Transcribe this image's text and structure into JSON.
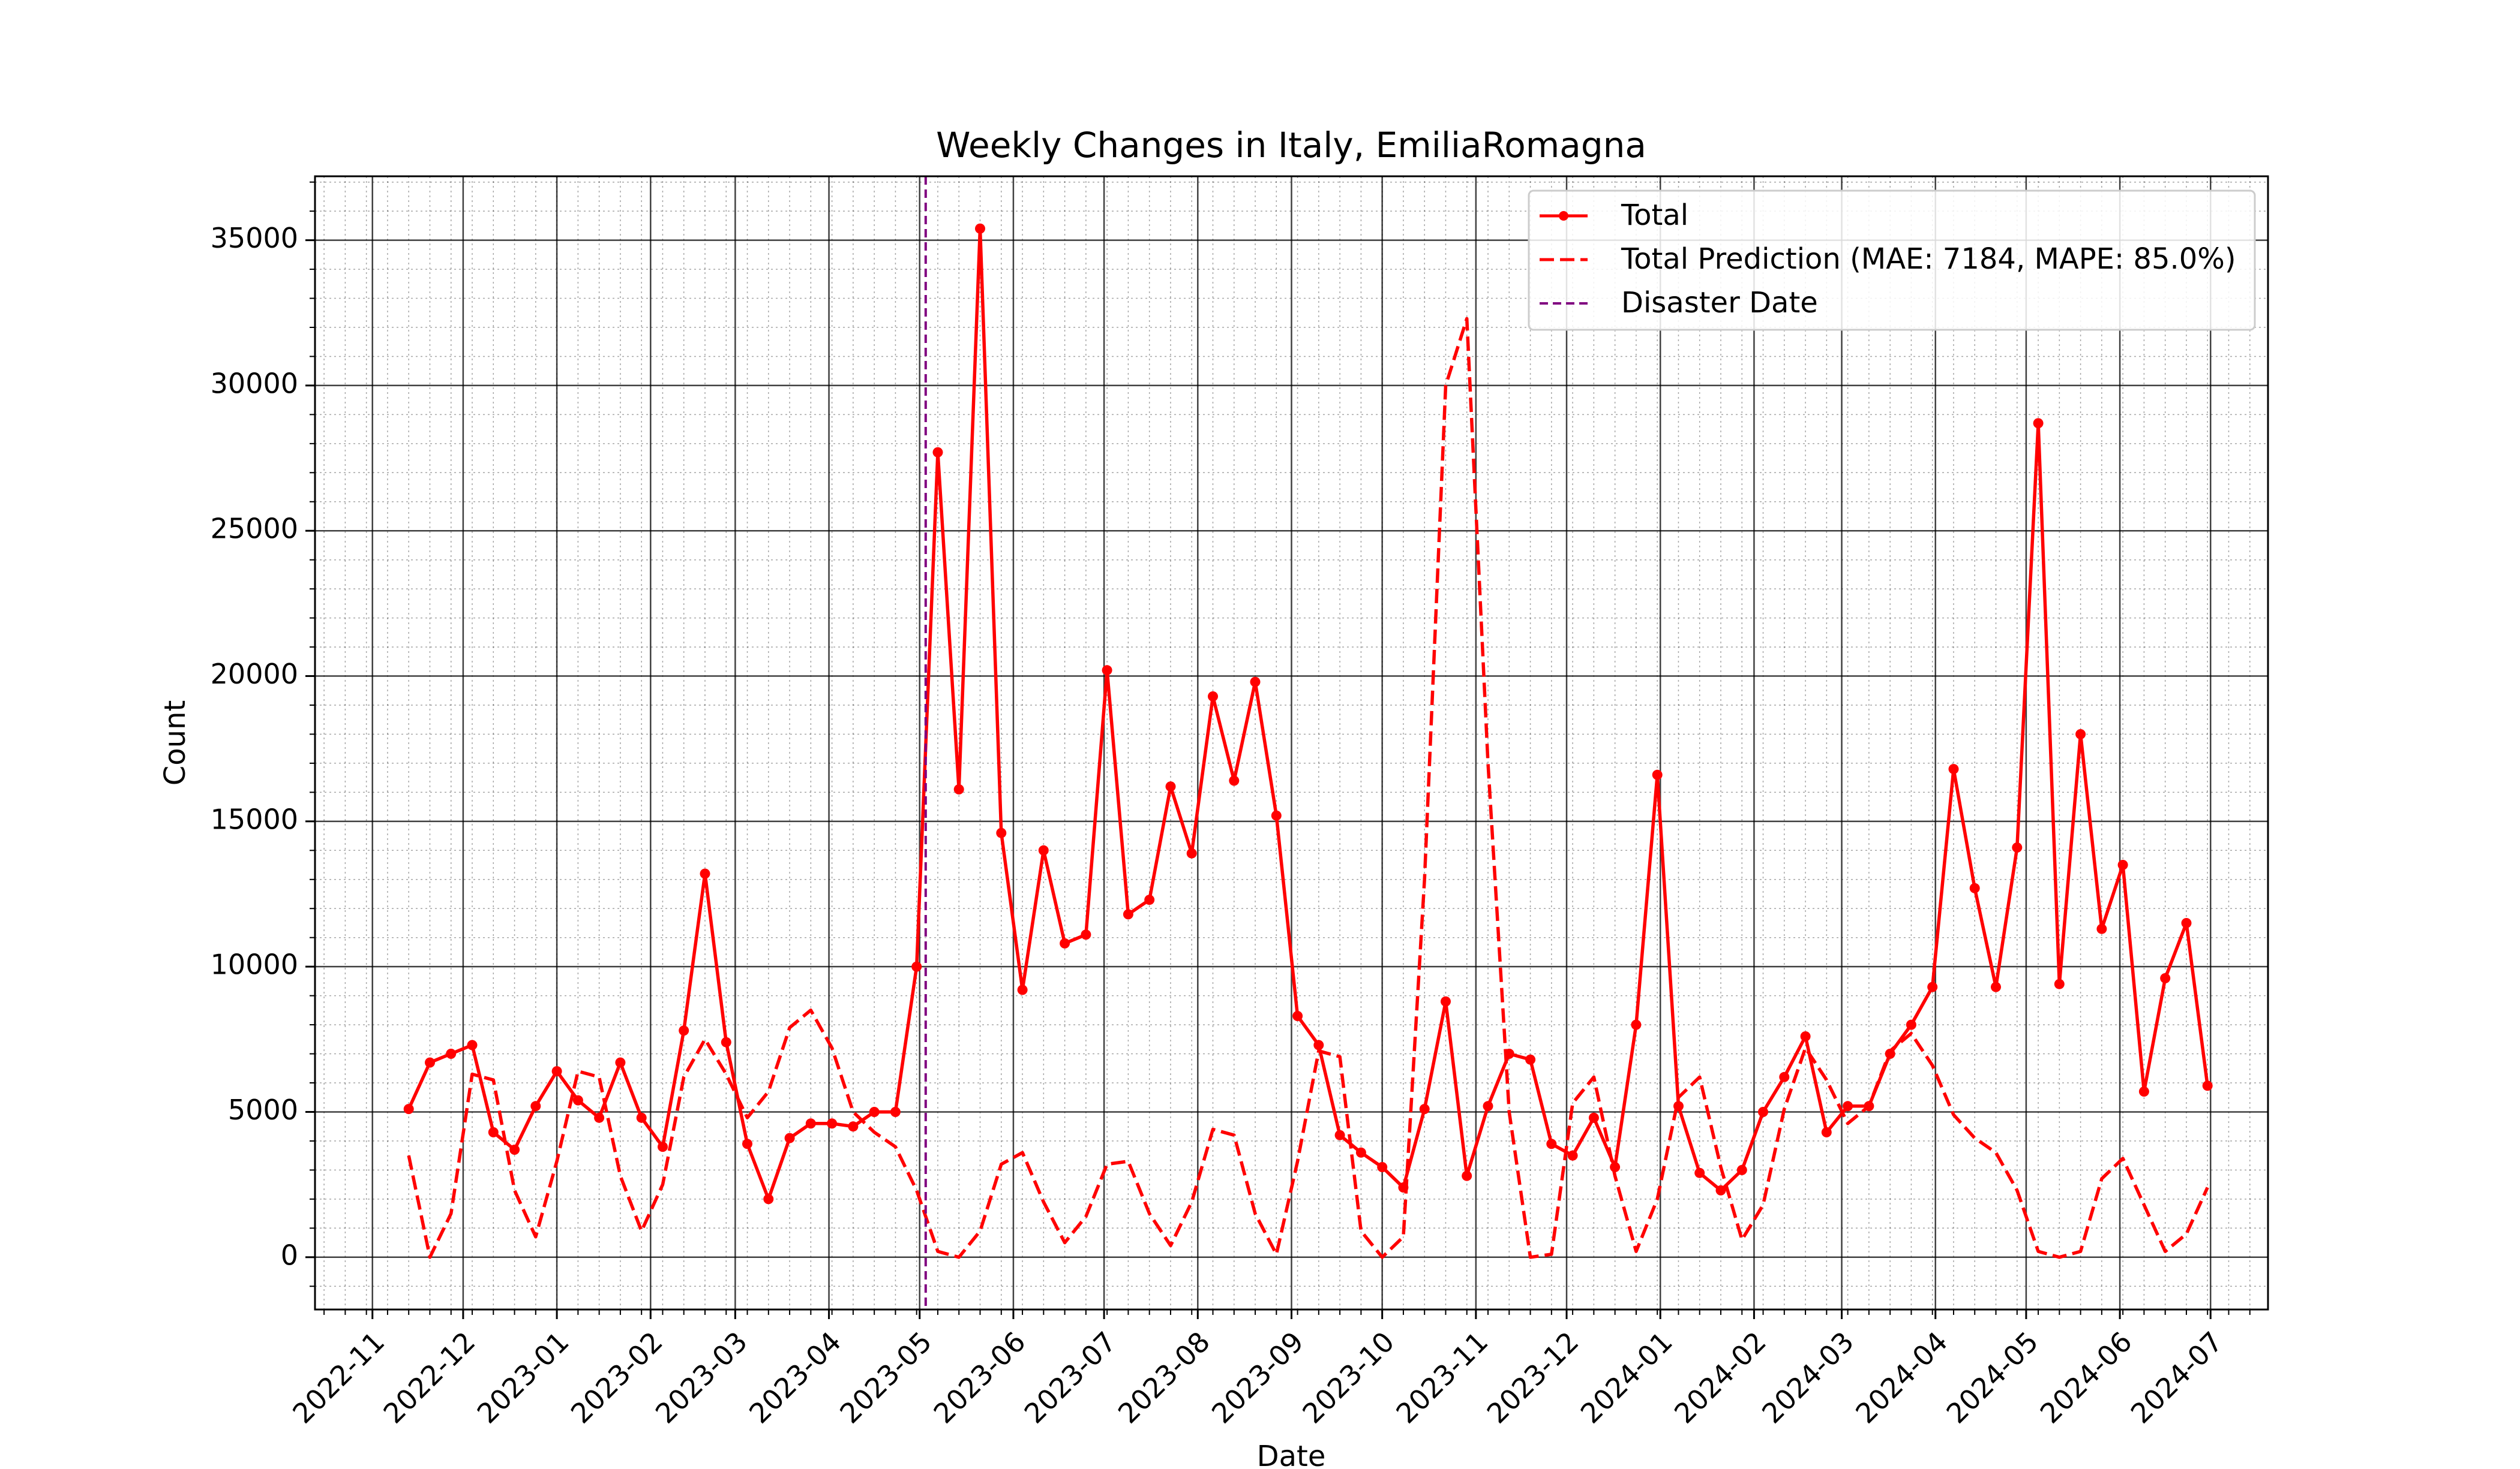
{
  "chart_data": {
    "type": "line",
    "title": "Weekly Changes in Italy, EmiliaRomagna",
    "xlabel": "Date",
    "ylabel": "Count",
    "ylim": [
      -1800,
      37200
    ],
    "xlim": [
      "2022-10-13",
      "2024-07-20"
    ],
    "y_ticks": [
      0,
      5000,
      10000,
      15000,
      20000,
      25000,
      30000,
      35000
    ],
    "x_ticks": [
      "2022-11",
      "2022-12",
      "2023-01",
      "2023-02",
      "2023-03",
      "2023-04",
      "2023-05",
      "2023-06",
      "2023-07",
      "2023-08",
      "2023-09",
      "2023-10",
      "2023-11",
      "2023-12",
      "2024-01",
      "2024-02",
      "2024-03",
      "2024-04",
      "2024-05",
      "2024-06",
      "2024-07"
    ],
    "grid": true,
    "minor_grid": true,
    "legend_position": "top-right",
    "disaster_date": "2023-05-03",
    "colors": {
      "total": "#ff0000",
      "prediction": "#ff0000",
      "disaster": "#800080",
      "grid": "#000000"
    },
    "series": [
      {
        "name": "Total",
        "style": "solid-markers",
        "x": [
          "2022-11-13",
          "2022-11-20",
          "2022-11-27",
          "2022-12-04",
          "2022-12-11",
          "2022-12-18",
          "2022-12-25",
          "2023-01-01",
          "2023-01-08",
          "2023-01-15",
          "2023-01-22",
          "2023-01-29",
          "2023-02-05",
          "2023-02-12",
          "2023-02-19",
          "2023-02-26",
          "2023-03-05",
          "2023-03-12",
          "2023-03-19",
          "2023-03-26",
          "2023-04-02",
          "2023-04-09",
          "2023-04-16",
          "2023-04-23",
          "2023-04-30",
          "2023-05-07",
          "2023-05-14",
          "2023-05-21",
          "2023-05-28",
          "2023-06-04",
          "2023-06-11",
          "2023-06-18",
          "2023-06-25",
          "2023-07-02",
          "2023-07-09",
          "2023-07-16",
          "2023-07-23",
          "2023-07-30",
          "2023-08-06",
          "2023-08-13",
          "2023-08-20",
          "2023-08-27",
          "2023-09-03",
          "2023-09-10",
          "2023-09-17",
          "2023-09-24",
          "2023-10-01",
          "2023-10-08",
          "2023-10-15",
          "2023-10-22",
          "2023-10-29",
          "2023-11-05",
          "2023-11-12",
          "2023-11-19",
          "2023-11-26",
          "2023-12-03",
          "2023-12-10",
          "2023-12-17",
          "2023-12-24",
          "2023-12-31",
          "2024-01-07",
          "2024-01-14",
          "2024-01-21",
          "2024-01-28",
          "2024-02-04",
          "2024-02-11",
          "2024-02-18",
          "2024-02-25",
          "2024-03-03",
          "2024-03-10",
          "2024-03-17",
          "2024-03-24",
          "2024-03-31",
          "2024-04-07",
          "2024-04-14",
          "2024-04-21",
          "2024-04-28",
          "2024-05-05",
          "2024-05-12",
          "2024-05-19",
          "2024-05-26",
          "2024-06-02",
          "2024-06-09",
          "2024-06-16",
          "2024-06-23",
          "2024-06-30"
        ],
        "values": [
          5100,
          6700,
          7000,
          7300,
          4300,
          3700,
          5200,
          6400,
          5400,
          4800,
          6700,
          4800,
          3800,
          7800,
          13200,
          7400,
          3900,
          2000,
          4100,
          4600,
          4600,
          4500,
          5000,
          5000,
          10000,
          27700,
          16100,
          35400,
          14600,
          9200,
          14000,
          10800,
          11100,
          20200,
          11800,
          12300,
          16200,
          13900,
          19300,
          16400,
          19800,
          15200,
          8300,
          7300,
          4200,
          3600,
          3100,
          2400,
          5100,
          8800,
          2800,
          5200,
          7000,
          6800,
          3900,
          3500,
          4800,
          3100,
          8000,
          16600,
          5200,
          2900,
          2300,
          3000,
          5000,
          6200,
          7600,
          4300,
          5200,
          5200,
          7000,
          8000,
          9300,
          16800,
          12700,
          9300,
          14100,
          28700,
          9400,
          18000,
          11300,
          13500,
          5700,
          9600,
          11500,
          5900
        ]
      },
      {
        "name": "Total Prediction (MAE: 7184, MAPE: 85.0%)",
        "style": "dashed",
        "x": [
          "2022-11-13",
          "2022-11-20",
          "2022-11-27",
          "2022-12-04",
          "2022-12-11",
          "2022-12-18",
          "2022-12-25",
          "2023-01-01",
          "2023-01-08",
          "2023-01-15",
          "2023-01-22",
          "2023-01-29",
          "2023-02-05",
          "2023-02-12",
          "2023-02-19",
          "2023-02-26",
          "2023-03-05",
          "2023-03-12",
          "2023-03-19",
          "2023-03-26",
          "2023-04-02",
          "2023-04-09",
          "2023-04-16",
          "2023-04-23",
          "2023-04-30",
          "2023-05-07",
          "2023-05-14",
          "2023-05-21",
          "2023-05-28",
          "2023-06-04",
          "2023-06-11",
          "2023-06-18",
          "2023-06-25",
          "2023-07-02",
          "2023-07-09",
          "2023-07-16",
          "2023-07-23",
          "2023-07-30",
          "2023-08-06",
          "2023-08-13",
          "2023-08-20",
          "2023-08-27",
          "2023-09-03",
          "2023-09-10",
          "2023-09-17",
          "2023-09-24",
          "2023-10-01",
          "2023-10-08",
          "2023-10-15",
          "2023-10-22",
          "2023-10-29",
          "2023-11-05",
          "2023-11-12",
          "2023-11-19",
          "2023-11-26",
          "2023-12-03",
          "2023-12-10",
          "2023-12-17",
          "2023-12-24",
          "2023-12-31",
          "2024-01-07",
          "2024-01-14",
          "2024-01-21",
          "2024-01-28",
          "2024-02-04",
          "2024-02-11",
          "2024-02-18",
          "2024-02-25",
          "2024-03-03",
          "2024-03-10",
          "2024-03-17",
          "2024-03-24",
          "2024-03-31",
          "2024-04-07",
          "2024-04-14",
          "2024-04-21",
          "2024-04-28",
          "2024-05-05",
          "2024-05-12",
          "2024-05-19",
          "2024-05-26",
          "2024-06-02",
          "2024-06-09",
          "2024-06-16",
          "2024-06-23",
          "2024-06-30"
        ],
        "values": [
          3500,
          0,
          1500,
          6300,
          6100,
          2300,
          700,
          3300,
          6400,
          6200,
          2800,
          900,
          2500,
          6200,
          7500,
          6300,
          4800,
          5700,
          7900,
          8500,
          7200,
          5000,
          4300,
          3800,
          2300,
          200,
          0,
          900,
          3200,
          3600,
          1900,
          500,
          1400,
          3200,
          3300,
          1500,
          400,
          1900,
          4400,
          4200,
          1500,
          100,
          3300,
          7100,
          6900,
          900,
          0,
          700,
          13000,
          30000,
          32300,
          17000,
          5000,
          0,
          100,
          5300,
          6200,
          2800,
          200,
          2000,
          5500,
          6200,
          3100,
          600,
          1800,
          5100,
          7200,
          6100,
          4600,
          5200,
          7100,
          7700,
          6600,
          4900,
          4100,
          3600,
          2300,
          200,
          0,
          200,
          2700,
          3400,
          1800,
          200,
          800,
          2400
        ]
      },
      {
        "name": "Disaster Date",
        "style": "dashed-vertical"
      }
    ]
  }
}
